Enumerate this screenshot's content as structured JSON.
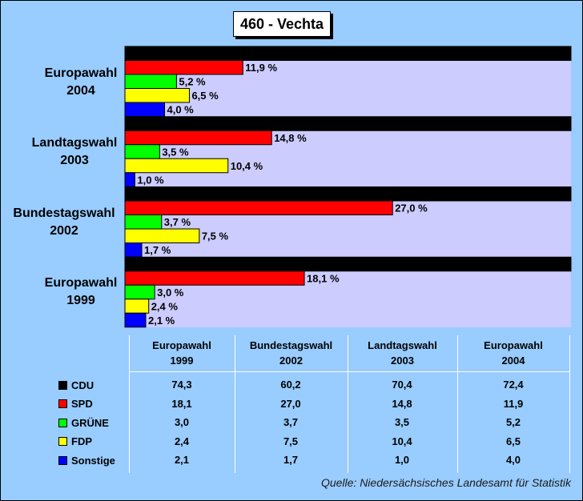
{
  "title": "460 - Vechta",
  "source": "Quelle: Niedersächsisches Landesamt für Statistik",
  "colors": {
    "background": "#99ccff",
    "plot_area": "#ccccff",
    "CDU": "#000000",
    "SPD": "#ff0000",
    "GRÜNE": "#00ff00",
    "FDP": "#ffff00",
    "Sonstige": "#0000ff"
  },
  "chart_data": {
    "type": "bar",
    "orientation": "horizontal",
    "title": "460 - Vechta",
    "categories": [
      "Europawahl 2004",
      "Landtagswahl 2003",
      "Bundestagswahl 2002",
      "Europawahl 1999"
    ],
    "category_lines": [
      [
        "Europawahl",
        "2004"
      ],
      [
        "Landtagswahl",
        "2003"
      ],
      [
        "Bundestagswahl",
        "2002"
      ],
      [
        "Europawahl",
        "1999"
      ]
    ],
    "series": [
      {
        "name": "CDU",
        "values": [
          72.4,
          70.4,
          60.2,
          74.3
        ],
        "labels": [
          "",
          "",
          "",
          ""
        ]
      },
      {
        "name": "SPD",
        "values": [
          11.9,
          14.8,
          27.0,
          18.1
        ],
        "labels": [
          "11,9 %",
          "14,8 %",
          "27,0 %",
          "18,1 %"
        ]
      },
      {
        "name": "GRÜNE",
        "values": [
          5.2,
          3.5,
          3.7,
          3.0
        ],
        "labels": [
          "5,2 %",
          "3,5 %",
          "3,7 %",
          "3,0 %"
        ]
      },
      {
        "name": "FDP",
        "values": [
          6.5,
          10.4,
          7.5,
          2.4
        ],
        "labels": [
          "6,5 %",
          "10,4 %",
          "7,5 %",
          "2,4 %"
        ]
      },
      {
        "name": "Sonstige",
        "values": [
          4.0,
          1.0,
          1.7,
          2.1
        ],
        "labels": [
          "4,0 %",
          "1,0 %",
          "1,7 %",
          "2,1 %"
        ]
      }
    ],
    "xlim": [
      0,
      45
    ],
    "legend": "table-below",
    "grid": false
  },
  "table": {
    "columns": [
      {
        "line1": "Europawahl",
        "line2": "1999"
      },
      {
        "line1": "Bundestagswahl",
        "line2": "2002"
      },
      {
        "line1": "Landtagswahl",
        "line2": "2003"
      },
      {
        "line1": "Europawahl",
        "line2": "2004"
      }
    ],
    "rows": [
      {
        "party": "CDU",
        "cells": [
          "74,3",
          "60,2",
          "70,4",
          "72,4"
        ]
      },
      {
        "party": "SPD",
        "cells": [
          "18,1",
          "27,0",
          "14,8",
          "11,9"
        ]
      },
      {
        "party": "GRÜNE",
        "cells": [
          "3,0",
          "3,7",
          "3,5",
          "5,2"
        ]
      },
      {
        "party": "FDP",
        "cells": [
          "2,4",
          "7,5",
          "10,4",
          "6,5"
        ]
      },
      {
        "party": "Sonstige",
        "cells": [
          "2,1",
          "1,7",
          "1,0",
          "4,0"
        ]
      }
    ]
  }
}
